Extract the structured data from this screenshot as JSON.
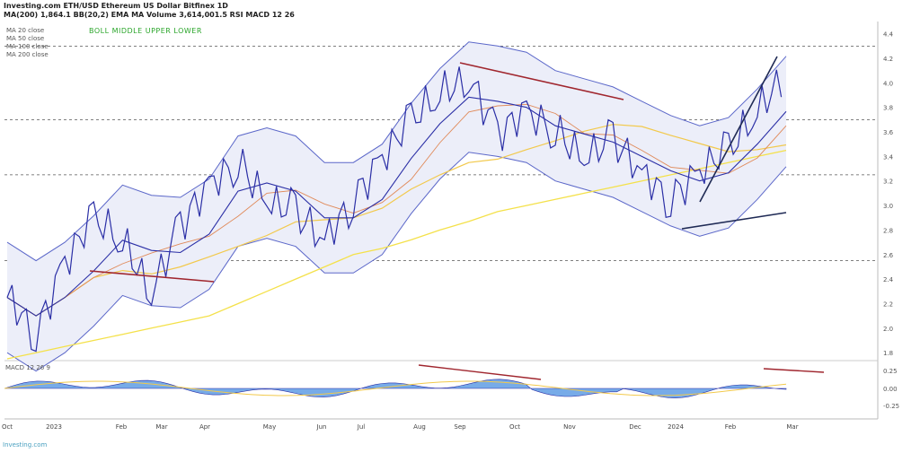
{
  "header": {
    "line1": "Investing.com ETH/USD Ethereum US Dollar Bitfinex 1D",
    "line2": "MA(200) 1,864.1  BB(20,2)  EMA  MA  Volume 3,614,001.5  RSI  MACD 12 26"
  },
  "indicator_labels": "BOLL MIDDLE UPPER LOWER",
  "legend_lines": [
    "MA 20 close",
    "MA 50 close",
    "MA 100 close",
    "MA 200 close"
  ],
  "oscillator_label": "MACD 12 26 9",
  "footer": "Investing.com",
  "colors": {
    "price": "#2b2fa6",
    "band": "#5b67c9",
    "band_fill": "#eceef9",
    "ma_fast": "#e08a5a",
    "ma_mid": "#2b2fa6",
    "ma_long": "#f2c94c",
    "ma_200": "#f4e14a",
    "trend_red": "#a0262e",
    "trend_dark": "#1f2a55",
    "macd_fill": "#4a8fe0"
  },
  "chart_data": {
    "type": "line",
    "title": "",
    "y_ticks": [
      4.4,
      4.2,
      4.0,
      3.8,
      3.6,
      3.4,
      3.2,
      3.0,
      2.8,
      2.6,
      2.4,
      2.2,
      2.0,
      1.8
    ],
    "x_ticks": [
      "Oct",
      "2023",
      "Feb",
      "Mar",
      "Apr",
      "May",
      "Jun",
      "Jul",
      "Aug",
      "Sep",
      "Oct",
      "Nov",
      "Dec",
      "2024",
      "Feb",
      "Mar"
    ],
    "ylim": [
      1.75,
      4.5
    ],
    "series": [
      {
        "name": "Price",
        "values": [
          2.25,
          1.95,
          2.55,
          2.9,
          2.7,
          2.3,
          2.85,
          3.15,
          3.35,
          3.05,
          2.95,
          2.7,
          3.05,
          3.4,
          3.7,
          3.9,
          4.05,
          3.6,
          3.75,
          3.6,
          3.4,
          3.55,
          3.25,
          3.05,
          3.3,
          3.45,
          3.75,
          4.1
        ]
      },
      {
        "name": "MA 200",
        "values": [
          1.75,
          1.8,
          1.85,
          1.9,
          1.95,
          2.0,
          2.05,
          2.1,
          2.2,
          2.3,
          2.4,
          2.5,
          2.6,
          2.65,
          2.72,
          2.8,
          2.87,
          2.95,
          3.0,
          3.05,
          3.1,
          3.15,
          3.2,
          3.25,
          3.3,
          3.35,
          3.4,
          3.45
        ]
      }
    ],
    "oscillator": {
      "name": "MACD",
      "y_ticks": [
        "0.25",
        "0.00",
        "-0.25"
      ]
    }
  }
}
